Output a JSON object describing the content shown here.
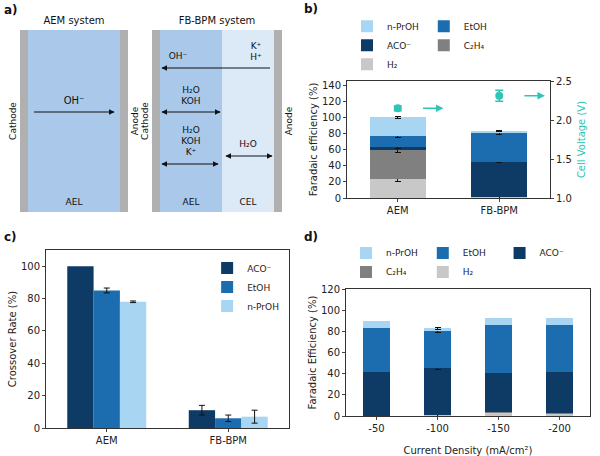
{
  "diagram": {
    "label": "a)",
    "systems": [
      {
        "title": "AEM system",
        "electrodes": [
          "Cathode",
          "Anode"
        ],
        "layers": [
          "AEL"
        ],
        "ion": "OH⁻"
      },
      {
        "title": "FB-BPM system",
        "electrodes": [
          "Cathode",
          "Anode"
        ],
        "layers": [
          "AEL",
          "CEL"
        ],
        "flows": {
          "row1_left": [
            "OH⁻"
          ],
          "row1_right": [
            "K⁺",
            "H⁺"
          ],
          "row2": [
            "H₂O",
            "KOH"
          ],
          "row3_left": [
            "H₂O",
            "KOH",
            "K⁺"
          ],
          "row3_right": [
            "H₂O"
          ]
        }
      }
    ]
  },
  "chart_data": [
    {
      "type": "bar",
      "label": "b)",
      "categories": [
        "AEM",
        "FB-BPM"
      ],
      "stacked": true,
      "grid": false,
      "legend": "top",
      "y_label": "Faradaic efficiency (%)",
      "y2_label": "Cell Voltage (V)",
      "ylim": [
        0,
        145
      ],
      "yticks": [
        0,
        20,
        40,
        60,
        80,
        100,
        120,
        140
      ],
      "y2lim": [
        1.0,
        2.5
      ],
      "y2ticks": [
        {
          "value": 1,
          "label": "1.0"
        },
        {
          "value": 1.5,
          "label": "1.5"
        },
        {
          "value": 2,
          "label": "2.0"
        },
        {
          "value": 2.5,
          "label": "2.5"
        }
      ],
      "series": [
        {
          "name": "H₂",
          "color": "#c8c8c8",
          "values": [
            24,
            1
          ],
          "errors": [
            3,
            2
          ]
        },
        {
          "name": "C₂H₄",
          "color": "#808080",
          "values": [
            35,
            0
          ],
          "errors": [
            2,
            null
          ]
        },
        {
          "name": "ACO⁻",
          "color": "#0d3b66",
          "values": [
            4,
            44
          ],
          "errors": [
            2,
            1
          ]
        },
        {
          "name": "EtOH",
          "color": "#1c6cb0",
          "values": [
            14,
            35
          ],
          "errors": [
            2,
            1
          ]
        },
        {
          "name": "n-PrOH",
          "color": "#a8d5f2",
          "values": [
            23,
            3
          ],
          "errors": [
            1,
            1
          ]
        },
        {
          "type": "scatter",
          "axis": "y2",
          "color": "#2ec4b6",
          "marker": "circle",
          "values": [
            2.15,
            2.31
          ],
          "errors": [
            0.03,
            0.07
          ]
        }
      ]
    },
    {
      "type": "bar",
      "label": "c)",
      "categories": [
        "AEM",
        "FB-BPM"
      ],
      "stacked": false,
      "grid": false,
      "legend": "upper right",
      "y_label": "Crossover Rate (%)",
      "ylim": [
        0,
        110
      ],
      "yticks": [
        0,
        20,
        40,
        60,
        80,
        100
      ],
      "series": [
        {
          "name": "ACO⁻",
          "color": "#0d3b66",
          "values": [
            100,
            11
          ],
          "errors": [
            null,
            3
          ]
        },
        {
          "name": "EtOH",
          "color": "#1c6cb0",
          "values": [
            85,
            6
          ],
          "errors": [
            1.5,
            2
          ]
        },
        {
          "name": "n-PrOH",
          "color": "#a8d5f2",
          "values": [
            78,
            7
          ],
          "errors": [
            0.5,
            4
          ]
        }
      ]
    },
    {
      "type": "bar",
      "label": "d)",
      "categories": [
        "-50",
        "-100",
        "-150",
        "-200"
      ],
      "stacked": true,
      "grid": false,
      "legend": "top",
      "x_label": "Current Density (mA/cm²)",
      "y_label": "Faradaic Efficiency (%)",
      "ylim": [
        0,
        120
      ],
      "yticks": [
        0,
        20,
        40,
        60,
        80,
        100,
        120
      ],
      "series": [
        {
          "name": "H₂",
          "color": "#c8c8c8",
          "values": [
            0,
            1,
            3,
            2
          ],
          "errors": [
            null,
            2,
            null,
            null
          ]
        },
        {
          "name": "C₂H₄",
          "color": "#808080",
          "values": [
            0,
            0,
            1,
            1
          ]
        },
        {
          "name": "ACO⁻",
          "color": "#0d3b66",
          "values": [
            42,
            44,
            37,
            39
          ],
          "errors": [
            null,
            1,
            null,
            null
          ]
        },
        {
          "name": "EtOH",
          "color": "#1c6cb0",
          "values": [
            41,
            35,
            45,
            44
          ],
          "errors": [
            null,
            1,
            null,
            null
          ]
        },
        {
          "name": "n-PrOH",
          "color": "#a8d5f2",
          "values": [
            7,
            3,
            7,
            7
          ],
          "errors": [
            null,
            1,
            null,
            null
          ]
        }
      ]
    }
  ]
}
